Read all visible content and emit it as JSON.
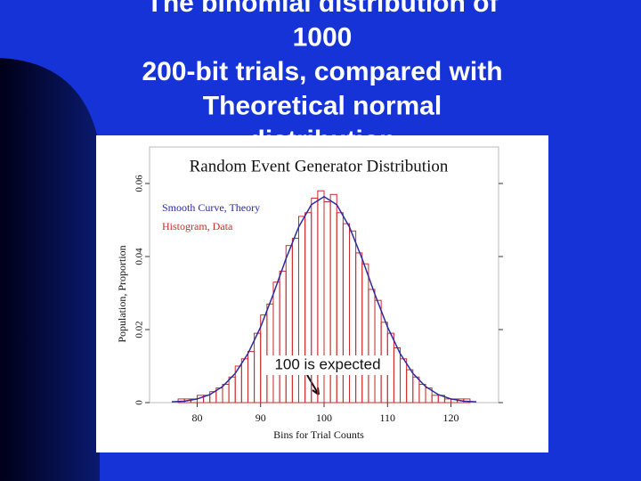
{
  "slide": {
    "title_lines": [
      "The binomial distribution of",
      "1000",
      "200-bit trials, compared with",
      "Theoretical normal",
      "distribution"
    ]
  },
  "chart_data": {
    "type": "histogram",
    "title": "Random Event Generator Distribution",
    "x_label": "Bins for Trial Counts",
    "y_label": "Population, Proportion",
    "annotation": "100 is expected",
    "bins": [
      77,
      78,
      79,
      80,
      81,
      82,
      83,
      84,
      85,
      86,
      87,
      88,
      89,
      90,
      91,
      92,
      93,
      94,
      95,
      96,
      97,
      98,
      99,
      100,
      101,
      102,
      103,
      104,
      105,
      106,
      107,
      108,
      109,
      110,
      111,
      112,
      113,
      114,
      115,
      116,
      117,
      118,
      119,
      120,
      121,
      122,
      123
    ],
    "series": [
      {
        "name": "Histogram, Data",
        "color": "#cc2a2a",
        "values": [
          0.001,
          0.001,
          0.001,
          0.002,
          0.002,
          0.003,
          0.004,
          0.005,
          0.007,
          0.01,
          0.012,
          0.014,
          0.019,
          0.024,
          0.027,
          0.033,
          0.036,
          0.043,
          0.045,
          0.051,
          0.052,
          0.056,
          0.058,
          0.055,
          0.057,
          0.052,
          0.049,
          0.047,
          0.041,
          0.038,
          0.031,
          0.028,
          0.022,
          0.019,
          0.015,
          0.012,
          0.009,
          0.007,
          0.005,
          0.004,
          0.002,
          0.002,
          0.001,
          0.001,
          0.001,
          0.001
        ]
      },
      {
        "name": "Smooth Curve, Theory",
        "color": "#2a2aa0",
        "x": [
          76,
          78,
          80,
          82,
          84,
          86,
          88,
          90,
          92,
          94,
          96,
          98,
          100,
          102,
          104,
          106,
          108,
          110,
          112,
          114,
          116,
          118,
          120,
          122,
          124
        ],
        "values": [
          0.0002,
          0.0004,
          0.001,
          0.0022,
          0.0044,
          0.008,
          0.0134,
          0.0207,
          0.0297,
          0.0394,
          0.0481,
          0.0542,
          0.0564,
          0.0542,
          0.0481,
          0.0394,
          0.0297,
          0.0207,
          0.0134,
          0.008,
          0.0044,
          0.0022,
          0.001,
          0.0004,
          0.0002
        ]
      }
    ],
    "xlim": [
      72.5,
      127.5
    ],
    "xticks": [
      80,
      90,
      100,
      110,
      120
    ],
    "ylim": [
      0,
      0.07
    ],
    "yticks": [
      0,
      0.02,
      0.04,
      0.06
    ]
  }
}
